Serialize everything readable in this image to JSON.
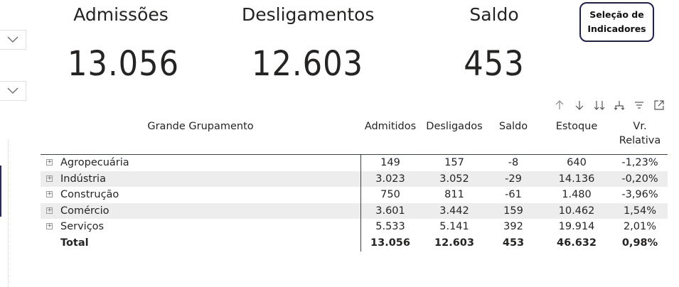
{
  "kpis": {
    "admissoes": {
      "title": "Admissões",
      "value": "13.056"
    },
    "desligamentos": {
      "title": "Desligamentos",
      "value": "12.603"
    },
    "saldo": {
      "title": "Saldo",
      "value": "453"
    }
  },
  "selection_button": {
    "label": "Seleção de\nIndicadores"
  },
  "toolbar": {
    "icons": [
      "arrow-up-icon",
      "arrow-down-icon",
      "double-arrow-down-icon",
      "expand-hierarchy-icon",
      "filter-icon",
      "focus-mode-icon"
    ]
  },
  "table": {
    "headers": {
      "group": "Grande Grupamento",
      "admitidos": "Admitidos",
      "desligados": "Desligados",
      "saldo": "Saldo",
      "estoque": "Estoque",
      "vr_relativa": "Vr.\nRelativa"
    },
    "rows": [
      {
        "name": "Agropecuária",
        "admitidos": "149",
        "desligados": "157",
        "saldo": "-8",
        "estoque": "640",
        "vr": "-1,23%"
      },
      {
        "name": "Indústria",
        "admitidos": "3.023",
        "desligados": "3.052",
        "saldo": "-29",
        "estoque": "14.136",
        "vr": "-0,20%"
      },
      {
        "name": "Construção",
        "admitidos": "750",
        "desligados": "811",
        "saldo": "-61",
        "estoque": "1.480",
        "vr": "-3,96%"
      },
      {
        "name": "Comércio",
        "admitidos": "3.601",
        "desligados": "3.442",
        "saldo": "159",
        "estoque": "10.462",
        "vr": "1,54%"
      },
      {
        "name": "Serviços",
        "admitidos": "5.533",
        "desligados": "5.141",
        "saldo": "392",
        "estoque": "19.914",
        "vr": "2,01%"
      }
    ],
    "total": {
      "name": "Total",
      "admitidos": "13.056",
      "desligados": "12.603",
      "saldo": "453",
      "estoque": "46.632",
      "vr": "0,98%"
    }
  },
  "colors": {
    "accent_border": "#1e1e5a",
    "row_shade": "#ededed",
    "text": "#252423"
  }
}
